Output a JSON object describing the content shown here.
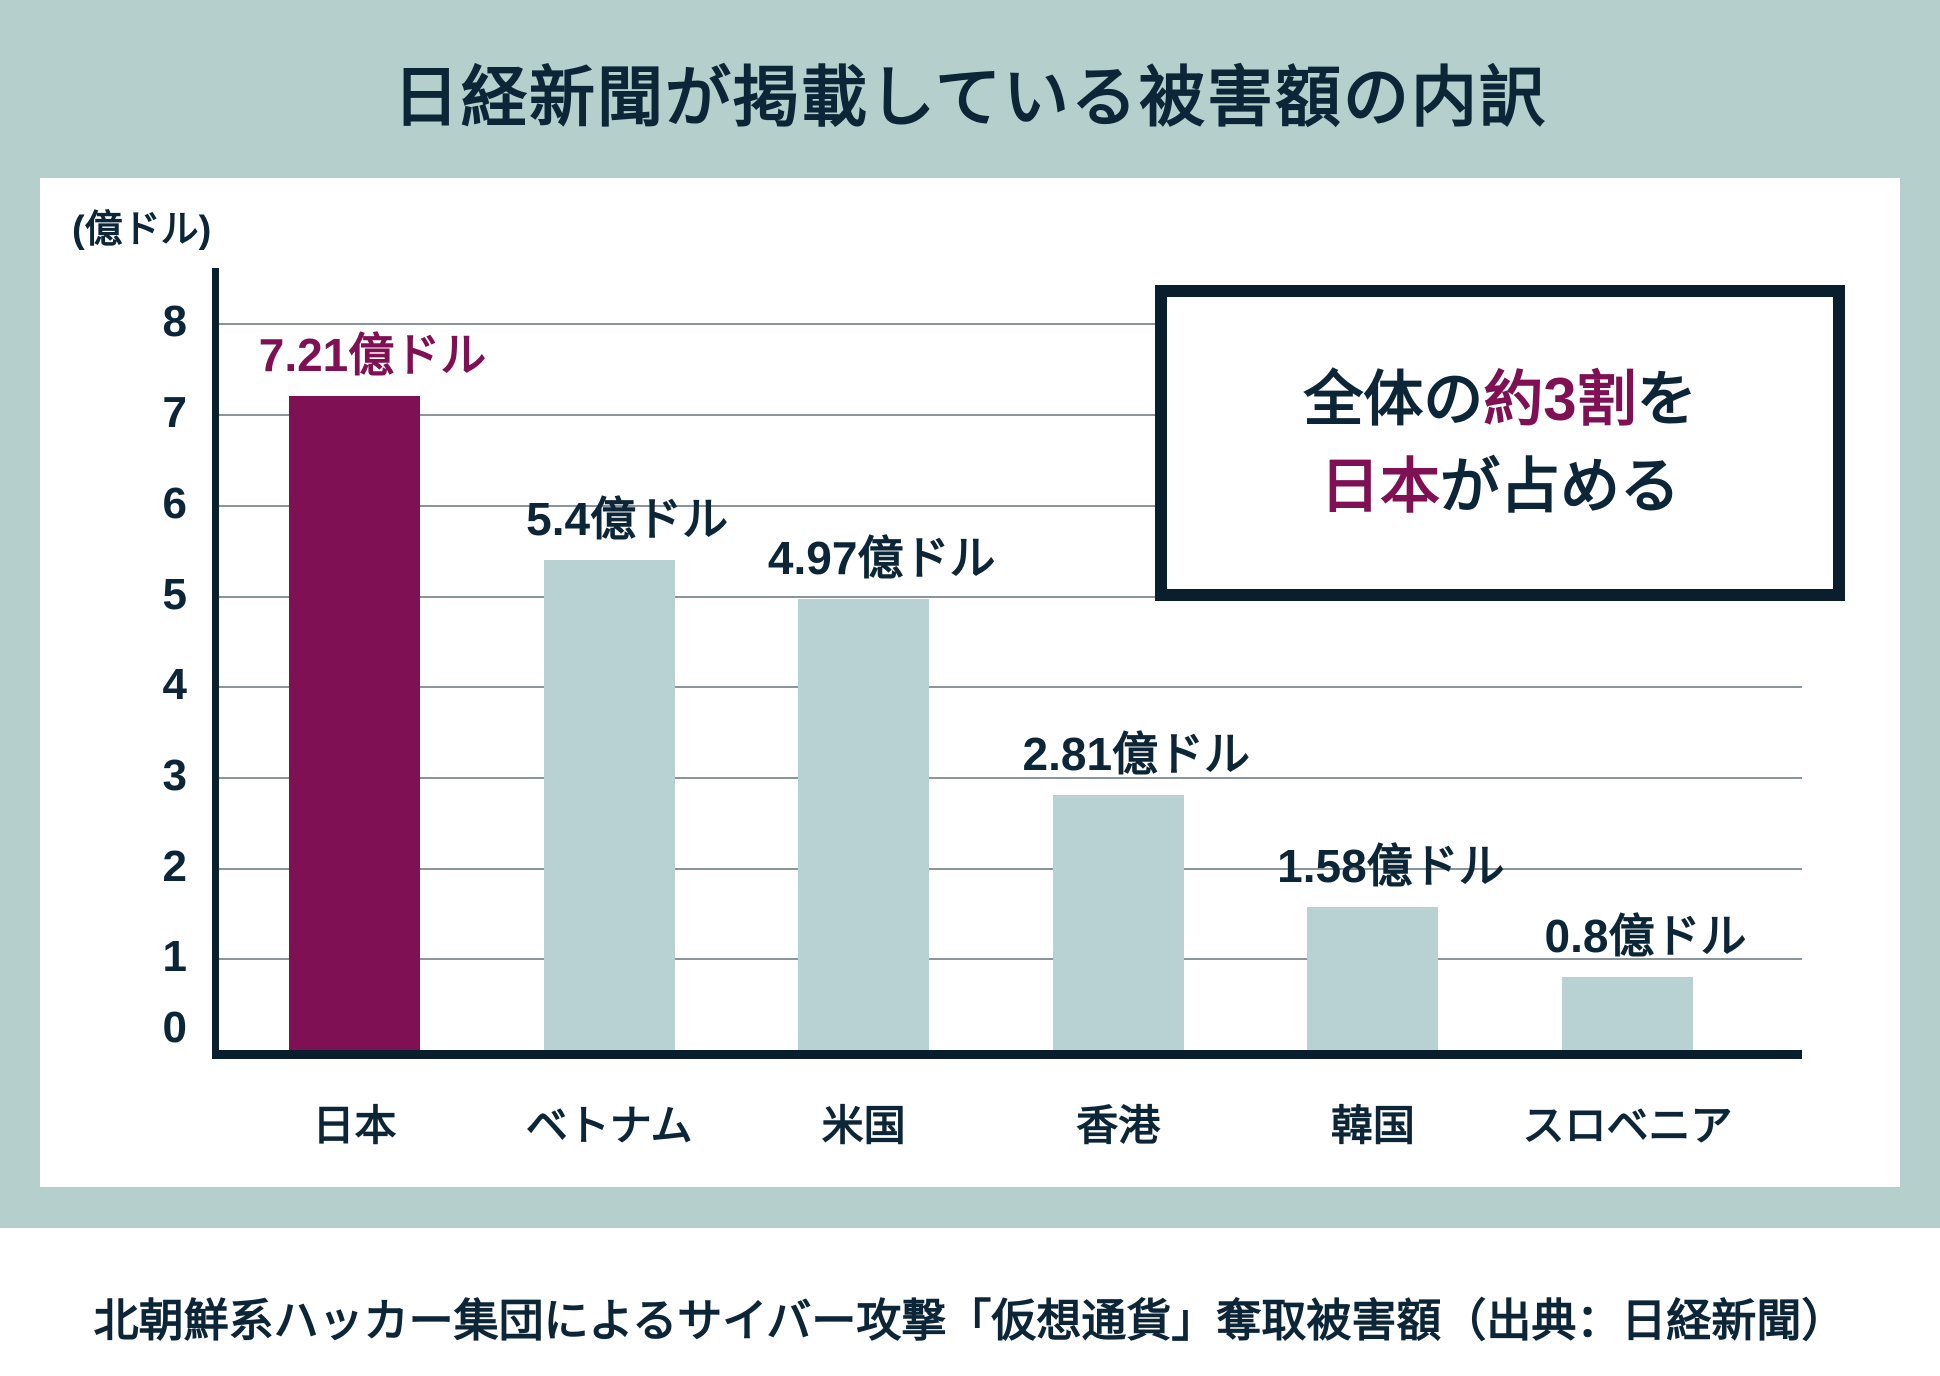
{
  "title": "日経新聞が掲載している被害額の内訳",
  "footer": "北朝鮮系ハッカー集団によるサイバー攻撃「仮想通貨」奪取被害額（出典：日経新聞）",
  "unit_label": "(億ドル)",
  "callout": {
    "line1": [
      {
        "text": "全体の",
        "color": "navy"
      },
      {
        "text": "約3割",
        "color": "maroon"
      },
      {
        "text": "を",
        "color": "navy"
      }
    ],
    "line2": [
      {
        "text": "日本",
        "color": "maroon"
      },
      {
        "text": "が占める",
        "color": "navy"
      }
    ]
  },
  "colors": {
    "background_teal": "#b5cfcd",
    "panel_white": "#ffffff",
    "navy": "#0c2637",
    "axis_navy": "#0a1f2e",
    "maroon": "#7e1053",
    "bar_default": "#b8d2d3",
    "gridline_gray": "#8b969c"
  },
  "chart_data": {
    "type": "bar",
    "categories": [
      "日本",
      "ベトナム",
      "米国",
      "香港",
      "韓国",
      "スロベニア"
    ],
    "values": [
      7.21,
      5.4,
      4.97,
      2.81,
      1.58,
      0.8
    ],
    "value_labels": [
      "7.21億ドル",
      "5.4億ドル",
      "4.97億ドル",
      "2.81億ドル",
      "1.58億ドル",
      "0.8億ドル"
    ],
    "highlight_index": 0,
    "title": "日経新聞が掲載している被害額の内訳",
    "xlabel": "",
    "ylabel": "(億ドル)",
    "ylim": [
      0,
      8
    ],
    "yticks": [
      0,
      1,
      2,
      3,
      4,
      5,
      6,
      7,
      8
    ],
    "grid": true,
    "legend": false
  }
}
